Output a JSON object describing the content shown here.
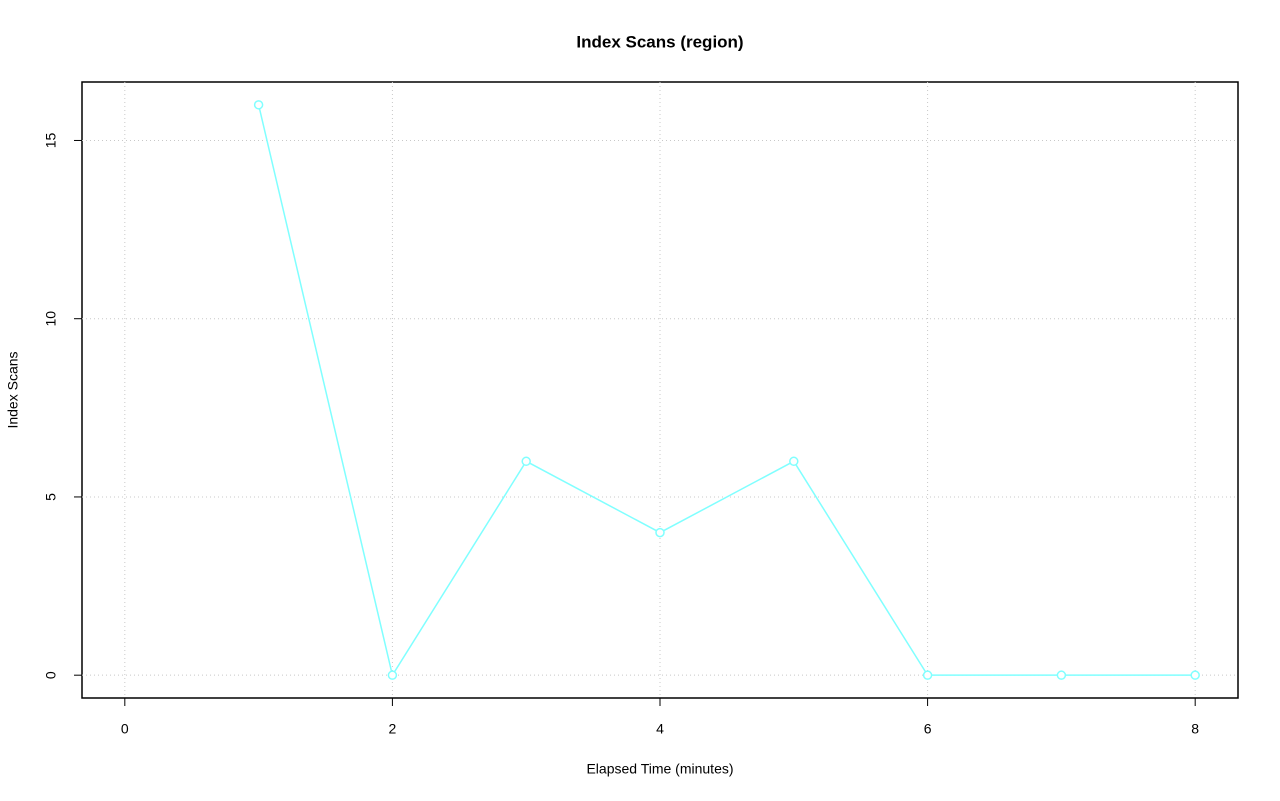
{
  "chart_data": {
    "type": "line",
    "title": "Index Scans (region)",
    "x_label": "Elapsed Time (minutes)",
    "y_label": "Index Scans",
    "x": [
      1,
      2,
      3,
      4,
      5,
      6,
      7,
      8
    ],
    "series": [
      {
        "name": "Index Scans",
        "color": "#80ffff",
        "values": [
          16,
          0,
          6,
          4,
          6,
          0,
          0,
          0
        ]
      }
    ],
    "xlim": [
      -0.32,
      8.32
    ],
    "ylim": [
      -0.64,
      16.64
    ],
    "xticks": [
      0,
      2,
      4,
      6,
      8
    ],
    "yticks": [
      0,
      5,
      10,
      15
    ],
    "grid": true
  }
}
